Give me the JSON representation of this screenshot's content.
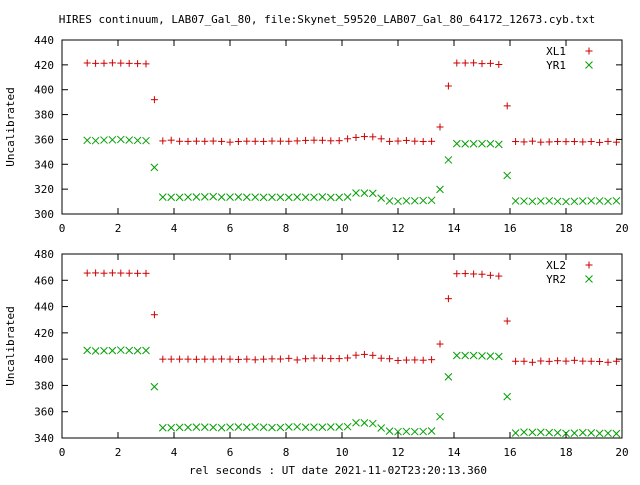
{
  "title": "HIRES continuum, LAB07_Gal_80, file:Skynet_59520_LAB07_Gal_80_64172_12673.cyb.txt",
  "xlabel": "rel seconds : UT date 2021-11-02T23:20:13.360",
  "colors": {
    "xl": "#cc0000",
    "yr": "#00a000",
    "axis": "#000000"
  },
  "chart_data": [
    {
      "type": "scatter",
      "ylabel": "Uncalibrated",
      "xlim": [
        0,
        20
      ],
      "ylim": [
        300,
        440
      ],
      "xticks": [
        "0",
        "2",
        "4",
        "6",
        "8",
        "10",
        "12",
        "14",
        "16",
        "18",
        "20"
      ],
      "yticks": [
        "300",
        "320",
        "340",
        "360",
        "380",
        "400",
        "420",
        "440"
      ],
      "legend_position": "top-right",
      "series": [
        {
          "name": "XL1",
          "marker": "plus",
          "points": [
            [
              0.9,
              421.5
            ],
            [
              1.2,
              421.2
            ],
            [
              1.5,
              421.3
            ],
            [
              1.8,
              421.6
            ],
            [
              2.1,
              421.4
            ],
            [
              2.4,
              421.2
            ],
            [
              2.7,
              421.0
            ],
            [
              3.0,
              420.8
            ],
            [
              3.3,
              392.0
            ],
            [
              3.6,
              358.8
            ],
            [
              3.9,
              359.4
            ],
            [
              4.2,
              358.5
            ],
            [
              4.5,
              358.4
            ],
            [
              4.8,
              358.6
            ],
            [
              5.1,
              358.5
            ],
            [
              5.4,
              358.7
            ],
            [
              5.7,
              358.4
            ],
            [
              6.0,
              357.8
            ],
            [
              6.3,
              358.3
            ],
            [
              6.6,
              358.6
            ],
            [
              6.9,
              358.5
            ],
            [
              7.2,
              358.4
            ],
            [
              7.5,
              358.7
            ],
            [
              7.8,
              358.6
            ],
            [
              8.1,
              358.5
            ],
            [
              8.4,
              358.8
            ],
            [
              8.7,
              359.2
            ],
            [
              9.0,
              359.4
            ],
            [
              9.3,
              359.3
            ],
            [
              9.6,
              358.9
            ],
            [
              9.9,
              359.0
            ],
            [
              10.2,
              360.5
            ],
            [
              10.5,
              361.6
            ],
            [
              10.8,
              362.3
            ],
            [
              11.1,
              362.1
            ],
            [
              11.4,
              360.5
            ],
            [
              11.7,
              358.4
            ],
            [
              12.0,
              358.7
            ],
            [
              12.3,
              359.2
            ],
            [
              12.6,
              358.6
            ],
            [
              12.9,
              358.3
            ],
            [
              13.2,
              358.5
            ],
            [
              13.5,
              370.0
            ],
            [
              13.8,
              403.0
            ],
            [
              14.1,
              421.5
            ],
            [
              14.4,
              421.5
            ],
            [
              14.7,
              421.6
            ],
            [
              15.0,
              421.0
            ],
            [
              15.3,
              421.2
            ],
            [
              15.6,
              420.3
            ],
            [
              15.9,
              387.0
            ],
            [
              16.2,
              358.3
            ],
            [
              16.5,
              358.0
            ],
            [
              16.8,
              358.6
            ],
            [
              17.1,
              357.8
            ],
            [
              17.4,
              358.0
            ],
            [
              17.7,
              358.3
            ],
            [
              18.0,
              358.2
            ],
            [
              18.3,
              358.3
            ],
            [
              18.6,
              358.0
            ],
            [
              18.9,
              358.3
            ],
            [
              19.2,
              357.6
            ],
            [
              19.5,
              358.4
            ],
            [
              19.8,
              357.8
            ]
          ]
        },
        {
          "name": "YR1",
          "marker": "cross",
          "points": [
            [
              0.9,
              359.3
            ],
            [
              1.2,
              359.0
            ],
            [
              1.5,
              359.5
            ],
            [
              1.8,
              359.7
            ],
            [
              2.1,
              360.0
            ],
            [
              2.4,
              359.5
            ],
            [
              2.7,
              359.2
            ],
            [
              3.0,
              359.0
            ],
            [
              3.3,
              337.5
            ],
            [
              3.6,
              313.6
            ],
            [
              3.9,
              313.5
            ],
            [
              4.2,
              313.4
            ],
            [
              4.5,
              313.6
            ],
            [
              4.8,
              313.7
            ],
            [
              5.1,
              313.8
            ],
            [
              5.4,
              314.0
            ],
            [
              5.7,
              313.6
            ],
            [
              6.0,
              313.6
            ],
            [
              6.3,
              313.7
            ],
            [
              6.6,
              313.5
            ],
            [
              6.9,
              313.6
            ],
            [
              7.2,
              313.4
            ],
            [
              7.5,
              313.5
            ],
            [
              7.8,
              313.5
            ],
            [
              8.1,
              313.4
            ],
            [
              8.4,
              313.6
            ],
            [
              8.7,
              313.5
            ],
            [
              9.0,
              313.5
            ],
            [
              9.3,
              313.8
            ],
            [
              9.6,
              313.4
            ],
            [
              9.9,
              313.4
            ],
            [
              10.2,
              313.7
            ],
            [
              10.5,
              316.9
            ],
            [
              10.8,
              316.8
            ],
            [
              11.1,
              316.6
            ],
            [
              11.4,
              312.8
            ],
            [
              11.7,
              310.5
            ],
            [
              12.0,
              310.2
            ],
            [
              12.3,
              310.6
            ],
            [
              12.6,
              310.6
            ],
            [
              12.9,
              310.8
            ],
            [
              13.2,
              311.0
            ],
            [
              13.5,
              319.8
            ],
            [
              13.8,
              343.5
            ],
            [
              14.1,
              356.6
            ],
            [
              14.4,
              356.4
            ],
            [
              14.7,
              356.5
            ],
            [
              15.0,
              356.5
            ],
            [
              15.3,
              356.5
            ],
            [
              15.6,
              356.0
            ],
            [
              15.9,
              331.0
            ],
            [
              16.2,
              310.5
            ],
            [
              16.5,
              310.4
            ],
            [
              16.8,
              310.2
            ],
            [
              17.1,
              310.4
            ],
            [
              17.4,
              310.6
            ],
            [
              17.7,
              310.2
            ],
            [
              18.0,
              310.0
            ],
            [
              18.3,
              310.2
            ],
            [
              18.6,
              310.4
            ],
            [
              18.9,
              310.6
            ],
            [
              19.2,
              310.5
            ],
            [
              19.5,
              310.2
            ],
            [
              19.8,
              310.6
            ]
          ]
        }
      ]
    },
    {
      "type": "scatter",
      "ylabel": "Uncalibrated",
      "xlim": [
        0,
        20
      ],
      "ylim": [
        340,
        480
      ],
      "xticks": [
        "0",
        "2",
        "4",
        "6",
        "8",
        "10",
        "12",
        "14",
        "16",
        "18",
        "20"
      ],
      "yticks": [
        "340",
        "360",
        "380",
        "400",
        "420",
        "440",
        "460",
        "480"
      ],
      "legend_position": "top-right",
      "series": [
        {
          "name": "XL2",
          "marker": "plus",
          "points": [
            [
              0.9,
              465.5
            ],
            [
              1.2,
              465.6
            ],
            [
              1.5,
              465.4
            ],
            [
              1.8,
              465.6
            ],
            [
              2.1,
              465.5
            ],
            [
              2.4,
              465.4
            ],
            [
              2.7,
              465.3
            ],
            [
              3.0,
              465.3
            ],
            [
              3.3,
              433.8
            ],
            [
              3.6,
              400.0
            ],
            [
              3.9,
              400.0
            ],
            [
              4.2,
              400.0
            ],
            [
              4.5,
              400.0
            ],
            [
              4.8,
              399.9
            ],
            [
              5.1,
              400.0
            ],
            [
              5.4,
              400.0
            ],
            [
              5.7,
              400.1
            ],
            [
              6.0,
              400.0
            ],
            [
              6.3,
              399.8
            ],
            [
              6.6,
              400.0
            ],
            [
              6.9,
              399.5
            ],
            [
              7.2,
              400.0
            ],
            [
              7.5,
              400.2
            ],
            [
              7.8,
              400.1
            ],
            [
              8.1,
              400.6
            ],
            [
              8.4,
              399.4
            ],
            [
              8.7,
              400.3
            ],
            [
              9.0,
              400.8
            ],
            [
              9.3,
              400.7
            ],
            [
              9.6,
              400.4
            ],
            [
              9.9,
              400.4
            ],
            [
              10.2,
              400.9
            ],
            [
              10.5,
              403.0
            ],
            [
              10.8,
              403.6
            ],
            [
              11.1,
              402.9
            ],
            [
              11.4,
              400.7
            ],
            [
              11.7,
              400.3
            ],
            [
              12.0,
              399.0
            ],
            [
              12.3,
              399.3
            ],
            [
              12.6,
              399.4
            ],
            [
              12.9,
              399.2
            ],
            [
              13.2,
              399.6
            ],
            [
              13.5,
              411.5
            ],
            [
              13.8,
              446.0
            ],
            [
              14.1,
              465.0
            ],
            [
              14.4,
              465.1
            ],
            [
              14.7,
              464.8
            ],
            [
              15.0,
              464.6
            ],
            [
              15.3,
              463.8
            ],
            [
              15.6,
              463.2
            ],
            [
              15.9,
              429.0
            ],
            [
              16.2,
              398.4
            ],
            [
              16.5,
              398.4
            ],
            [
              16.8,
              397.6
            ],
            [
              17.1,
              398.6
            ],
            [
              17.4,
              398.3
            ],
            [
              17.7,
              398.8
            ],
            [
              18.0,
              398.5
            ],
            [
              18.3,
              399.1
            ],
            [
              18.6,
              398.5
            ],
            [
              18.9,
              398.4
            ],
            [
              19.2,
              398.2
            ],
            [
              19.5,
              397.6
            ],
            [
              19.8,
              398.4
            ]
          ]
        },
        {
          "name": "YR2",
          "marker": "cross",
          "points": [
            [
              0.9,
              406.7
            ],
            [
              1.2,
              406.2
            ],
            [
              1.5,
              406.4
            ],
            [
              1.8,
              406.5
            ],
            [
              2.1,
              406.9
            ],
            [
              2.4,
              406.6
            ],
            [
              2.7,
              406.4
            ],
            [
              3.0,
              406.6
            ],
            [
              3.3,
              379.0
            ],
            [
              3.6,
              347.8
            ],
            [
              3.9,
              347.8
            ],
            [
              4.2,
              348.1
            ],
            [
              4.5,
              348.1
            ],
            [
              4.8,
              348.3
            ],
            [
              5.1,
              348.3
            ],
            [
              5.4,
              348.1
            ],
            [
              5.7,
              347.8
            ],
            [
              6.0,
              348.3
            ],
            [
              6.3,
              348.4
            ],
            [
              6.6,
              348.2
            ],
            [
              6.9,
              348.5
            ],
            [
              7.2,
              348.2
            ],
            [
              7.5,
              347.9
            ],
            [
              7.8,
              348.0
            ],
            [
              8.1,
              348.4
            ],
            [
              8.4,
              348.5
            ],
            [
              8.7,
              348.2
            ],
            [
              9.0,
              348.3
            ],
            [
              9.3,
              348.2
            ],
            [
              9.6,
              348.4
            ],
            [
              9.9,
              348.4
            ],
            [
              10.2,
              348.6
            ],
            [
              10.5,
              351.6
            ],
            [
              10.8,
              351.5
            ],
            [
              11.1,
              351.0
            ],
            [
              11.4,
              347.6
            ],
            [
              11.7,
              345.2
            ],
            [
              12.0,
              344.8
            ],
            [
              12.3,
              345.0
            ],
            [
              12.6,
              344.8
            ],
            [
              12.9,
              344.9
            ],
            [
              13.2,
              345.3
            ],
            [
              13.5,
              356.2
            ],
            [
              13.8,
              386.5
            ],
            [
              14.1,
              402.8
            ],
            [
              14.4,
              402.8
            ],
            [
              14.7,
              402.8
            ],
            [
              15.0,
              402.5
            ],
            [
              15.3,
              402.3
            ],
            [
              15.6,
              402.0
            ],
            [
              15.9,
              371.5
            ],
            [
              16.2,
              343.8
            ],
            [
              16.5,
              344.5
            ],
            [
              16.8,
              344.3
            ],
            [
              17.1,
              344.4
            ],
            [
              17.4,
              344.1
            ],
            [
              17.7,
              344.0
            ],
            [
              18.0,
              343.5
            ],
            [
              18.3,
              343.7
            ],
            [
              18.6,
              344.1
            ],
            [
              18.9,
              343.9
            ],
            [
              19.2,
              343.5
            ],
            [
              19.5,
              343.6
            ],
            [
              19.8,
              343.3
            ]
          ]
        }
      ]
    }
  ]
}
